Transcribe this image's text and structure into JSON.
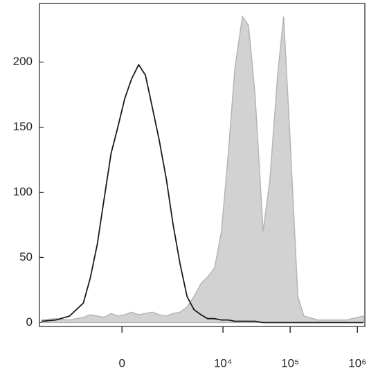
{
  "chart_data": {
    "type": "histogram-overlay",
    "xscale": "arcsinh",
    "x": [
      -4900,
      -3000,
      -1850,
      -1100,
      -830,
      -600,
      -410,
      -240,
      -90,
      60,
      210,
      380,
      560,
      780,
      1040,
      1370,
      1760,
      2260,
      2890,
      3670,
      4700,
      5900,
      7500,
      9500,
      12000,
      15000,
      19500,
      24000,
      30000,
      39600,
      50000,
      65000,
      80000,
      100000,
      130000,
      160000,
      260000,
      680000,
      1230000
    ],
    "series": [
      {
        "style": "area",
        "color": "#d2d2d2",
        "values": [
          2,
          3,
          2,
          4,
          6,
          5,
          4,
          7,
          5,
          6,
          8,
          6,
          7,
          8,
          6,
          5,
          7,
          8,
          12,
          20,
          30,
          35,
          42,
          70,
          130,
          195,
          235,
          228,
          175,
          70,
          110,
          190,
          235,
          140,
          20,
          5,
          2,
          2,
          5
        ]
      },
      {
        "style": "line",
        "color": "#1a1a1a",
        "values": [
          1,
          2,
          5,
          15,
          34,
          60,
          95,
          130,
          150,
          172,
          187,
          198,
          190,
          165,
          140,
          110,
          75,
          45,
          20,
          10,
          6,
          3,
          3,
          2,
          2,
          1,
          1,
          1,
          1,
          0,
          0,
          0,
          0,
          0,
          0,
          0,
          0,
          0,
          0
        ]
      }
    ],
    "xlim": [
      -5300,
      1290000
    ],
    "xticks": [
      0,
      {
        "value": 10000,
        "label": "10⁴"
      },
      {
        "value": 100000,
        "label": "10⁵"
      },
      {
        "value": 1000000,
        "label": "10⁶"
      }
    ],
    "ylim": [
      -3,
      245
    ],
    "yticks": [
      0,
      50,
      100,
      150,
      200
    ]
  }
}
